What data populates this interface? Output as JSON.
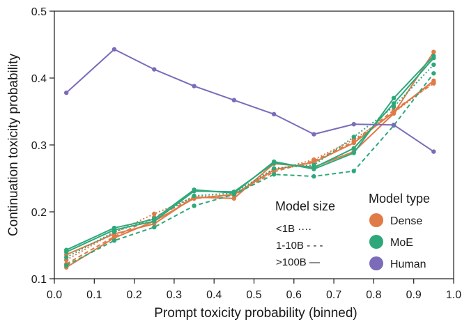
{
  "chart_data": {
    "type": "line",
    "title": "",
    "xlabel": "Prompt toxicity probability (binned)",
    "ylabel": "Continuation toxicity probability",
    "xlim": [
      0.0,
      1.0
    ],
    "ylim": [
      0.1,
      0.5
    ],
    "x_ticks": [
      "0.0",
      "0.1",
      "0.2",
      "0.3",
      "0.4",
      "0.5",
      "0.6",
      "0.7",
      "0.8",
      "0.9",
      "1.0"
    ],
    "y_ticks": [
      "0.1",
      "0.2",
      "0.3",
      "0.4",
      "0.5"
    ],
    "x": [
      0.03,
      0.15,
      0.25,
      0.35,
      0.45,
      0.55,
      0.65,
      0.75,
      0.85,
      0.95
    ],
    "series": [
      {
        "name": "Human",
        "type": "Human",
        "size": ">100B",
        "values": [
          0.378,
          0.443,
          0.413,
          0.388,
          0.367,
          0.346,
          0.316,
          0.331,
          0.33,
          0.29
        ]
      },
      {
        "name": "Dense <1B",
        "type": "Dense",
        "size": "<1B",
        "values": [
          0.128,
          0.169,
          0.197,
          0.222,
          0.225,
          0.262,
          0.278,
          0.308,
          0.348,
          0.394
        ]
      },
      {
        "name": "Dense 1-10B",
        "type": "Dense",
        "size": "1-10B",
        "values": [
          0.122,
          0.163,
          0.192,
          0.22,
          0.225,
          0.26,
          0.276,
          0.305,
          0.352,
          0.392
        ]
      },
      {
        "name": "Dense >100B",
        "type": "Dense",
        "size": ">100B",
        "values": [
          0.136,
          0.167,
          0.182,
          0.222,
          0.22,
          0.272,
          0.267,
          0.29,
          0.347,
          0.439
        ]
      },
      {
        "name": "Dense >100B (b)",
        "type": "Dense",
        "size": ">100B",
        "values": [
          0.117,
          0.161,
          0.186,
          0.22,
          0.226,
          0.263,
          0.274,
          0.303,
          0.349,
          0.396
        ]
      },
      {
        "name": "MoE <1B",
        "type": "MoE",
        "size": "<1B",
        "values": [
          0.132,
          0.17,
          0.19,
          0.224,
          0.228,
          0.265,
          0.27,
          0.312,
          0.357,
          0.42
        ]
      },
      {
        "name": "MoE 1-10B",
        "type": "MoE",
        "size": "1-10B",
        "values": [
          0.12,
          0.157,
          0.177,
          0.209,
          0.226,
          0.256,
          0.253,
          0.261,
          0.329,
          0.407
        ]
      },
      {
        "name": "MoE >100B",
        "type": "MoE",
        "size": ">100B",
        "values": [
          0.143,
          0.176,
          0.189,
          0.233,
          0.228,
          0.275,
          0.264,
          0.288,
          0.37,
          0.433
        ]
      },
      {
        "name": "MoE >100B (b)",
        "type": "MoE",
        "size": ">100B",
        "values": [
          0.14,
          0.173,
          0.186,
          0.231,
          0.23,
          0.273,
          0.266,
          0.295,
          0.362,
          0.43
        ]
      }
    ],
    "legend_size": {
      "title": "Model size",
      "items": [
        {
          "label": "<1B ····",
          "style": "dotted"
        },
        {
          "label": "1-10B - - -",
          "style": "dashed"
        },
        {
          "label": ">100B —",
          "style": "solid"
        }
      ]
    },
    "legend_type": {
      "title": "Model type",
      "items": [
        {
          "label": "Dense",
          "color": "#e07a47"
        },
        {
          "label": "MoE",
          "color": "#2ea87b"
        },
        {
          "label": "Human",
          "color": "#7b6bb8"
        }
      ]
    },
    "legend_position": "bottom-right",
    "grid": false,
    "colors": {
      "Dense": "#e07a47",
      "MoE": "#2ea87b",
      "Human": "#7b6bb8",
      "axis": "#1a1a1a"
    }
  }
}
